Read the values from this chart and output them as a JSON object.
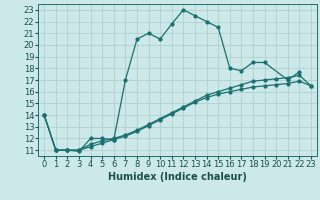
{
  "xlabel": "Humidex (Indice chaleur)",
  "bg_color": "#cce8e8",
  "grid_color": "#aacccc",
  "line_color": "#1a7070",
  "xlim": [
    -0.5,
    23.5
  ],
  "ylim": [
    10.5,
    23.5
  ],
  "xticks": [
    0,
    1,
    2,
    3,
    4,
    5,
    6,
    7,
    8,
    9,
    10,
    11,
    12,
    13,
    14,
    15,
    16,
    17,
    18,
    19,
    20,
    21,
    22,
    23
  ],
  "yticks": [
    11,
    12,
    13,
    14,
    15,
    16,
    17,
    18,
    19,
    20,
    21,
    22,
    23
  ],
  "xlabel_fontsize": 7,
  "tick_fontsize": 6,
  "line1_x": [
    0,
    1,
    2,
    3,
    4,
    5,
    6,
    7,
    8,
    9,
    10,
    11,
    12,
    13,
    14,
    15,
    16,
    17,
    18,
    19,
    21,
    22
  ],
  "line1_y": [
    14,
    11,
    11,
    10.9,
    12,
    12,
    11.9,
    17,
    20.5,
    21,
    20.5,
    21.8,
    23,
    22.5,
    22,
    21.5,
    18,
    17.8,
    18.5,
    18.5,
    17,
    17.7
  ],
  "line2_x": [
    0,
    1,
    2,
    3,
    4,
    5,
    6,
    7,
    8,
    9,
    10,
    11,
    12,
    13,
    14,
    15,
    16,
    17,
    18,
    19,
    20,
    21,
    22,
    23
  ],
  "line2_y": [
    14,
    11,
    11,
    11,
    11.5,
    11.8,
    12,
    12.3,
    12.7,
    13.2,
    13.7,
    14.2,
    14.7,
    15.2,
    15.7,
    16.0,
    16.3,
    16.6,
    16.9,
    17.0,
    17.1,
    17.2,
    17.4,
    16.5
  ],
  "line3_x": [
    0,
    1,
    2,
    3,
    4,
    5,
    6,
    7,
    8,
    9,
    10,
    11,
    12,
    13,
    14,
    15,
    16,
    17,
    18,
    19,
    20,
    21,
    22,
    23
  ],
  "line3_y": [
    14,
    11,
    11,
    11,
    11.3,
    11.6,
    11.9,
    12.2,
    12.6,
    13.1,
    13.6,
    14.1,
    14.6,
    15.1,
    15.5,
    15.8,
    16.0,
    16.2,
    16.4,
    16.5,
    16.6,
    16.7,
    16.9,
    16.5
  ]
}
